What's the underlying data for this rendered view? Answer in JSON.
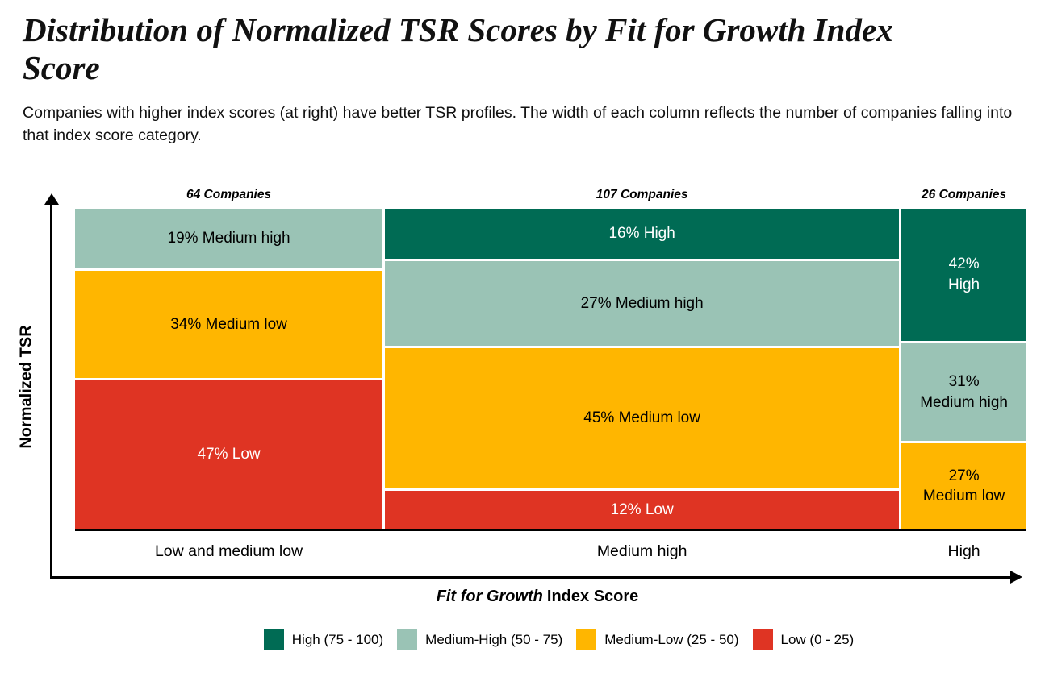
{
  "title": "Distribution of Normalized TSR Scores by Fit for Growth Index Score",
  "subtitle": "Companies with higher index scores (at right) have better TSR profiles. The width of each column reflects the number of companies falling into that index score category.",
  "colors": {
    "high": "#006B54",
    "medium_high": "#9AC3B5",
    "medium_low": "#FFB600",
    "low": "#DF3423",
    "axis": "#000000",
    "light_text": "#FFFFFF",
    "dark_text": "#000000"
  },
  "axes": {
    "y_label": "Normalized TSR",
    "x_title_italic": "Fit for Growth",
    "x_title_rest": "Index Score"
  },
  "legend": [
    {
      "label": "High (75 - 100)",
      "band": "high"
    },
    {
      "label": "Medium-High (50 - 75)",
      "band": "medium_high"
    },
    {
      "label": "Medium-Low (25 - 50)",
      "band": "medium_low"
    },
    {
      "label": "Low (0 - 25)",
      "band": "low"
    }
  ],
  "chart_data": {
    "type": "mosaic",
    "x_categories": [
      "Low and medium low",
      "Medium high",
      "High"
    ],
    "total_companies": 197,
    "columns": [
      {
        "category": "Low and medium low",
        "companies": 64,
        "companies_label": "64 Companies",
        "segments": [
          {
            "band": "medium_high",
            "pct": 19,
            "lines": [
              "19% Medium high"
            ],
            "text": "dark"
          },
          {
            "band": "medium_low",
            "pct": 34,
            "lines": [
              "34% Medium low"
            ],
            "text": "dark"
          },
          {
            "band": "low",
            "pct": 47,
            "lines": [
              "47% Low"
            ],
            "text": "light"
          }
        ]
      },
      {
        "category": "Medium high",
        "companies": 107,
        "companies_label": "107 Companies",
        "segments": [
          {
            "band": "high",
            "pct": 16,
            "lines": [
              "16% High"
            ],
            "text": "light"
          },
          {
            "band": "medium_high",
            "pct": 27,
            "lines": [
              "27% Medium high"
            ],
            "text": "dark"
          },
          {
            "band": "medium_low",
            "pct": 45,
            "lines": [
              "45% Medium low"
            ],
            "text": "dark"
          },
          {
            "band": "low",
            "pct": 12,
            "lines": [
              "12% Low"
            ],
            "text": "light"
          }
        ]
      },
      {
        "category": "High",
        "companies": 26,
        "companies_label": "26 Companies",
        "segments": [
          {
            "band": "high",
            "pct": 42,
            "lines": [
              "42%",
              "High"
            ],
            "text": "light"
          },
          {
            "band": "medium_high",
            "pct": 31,
            "lines": [
              "31%",
              "Medium high"
            ],
            "text": "dark"
          },
          {
            "band": "medium_low",
            "pct": 27,
            "lines": [
              "27%",
              "Medium low"
            ],
            "text": "dark"
          }
        ]
      }
    ]
  }
}
